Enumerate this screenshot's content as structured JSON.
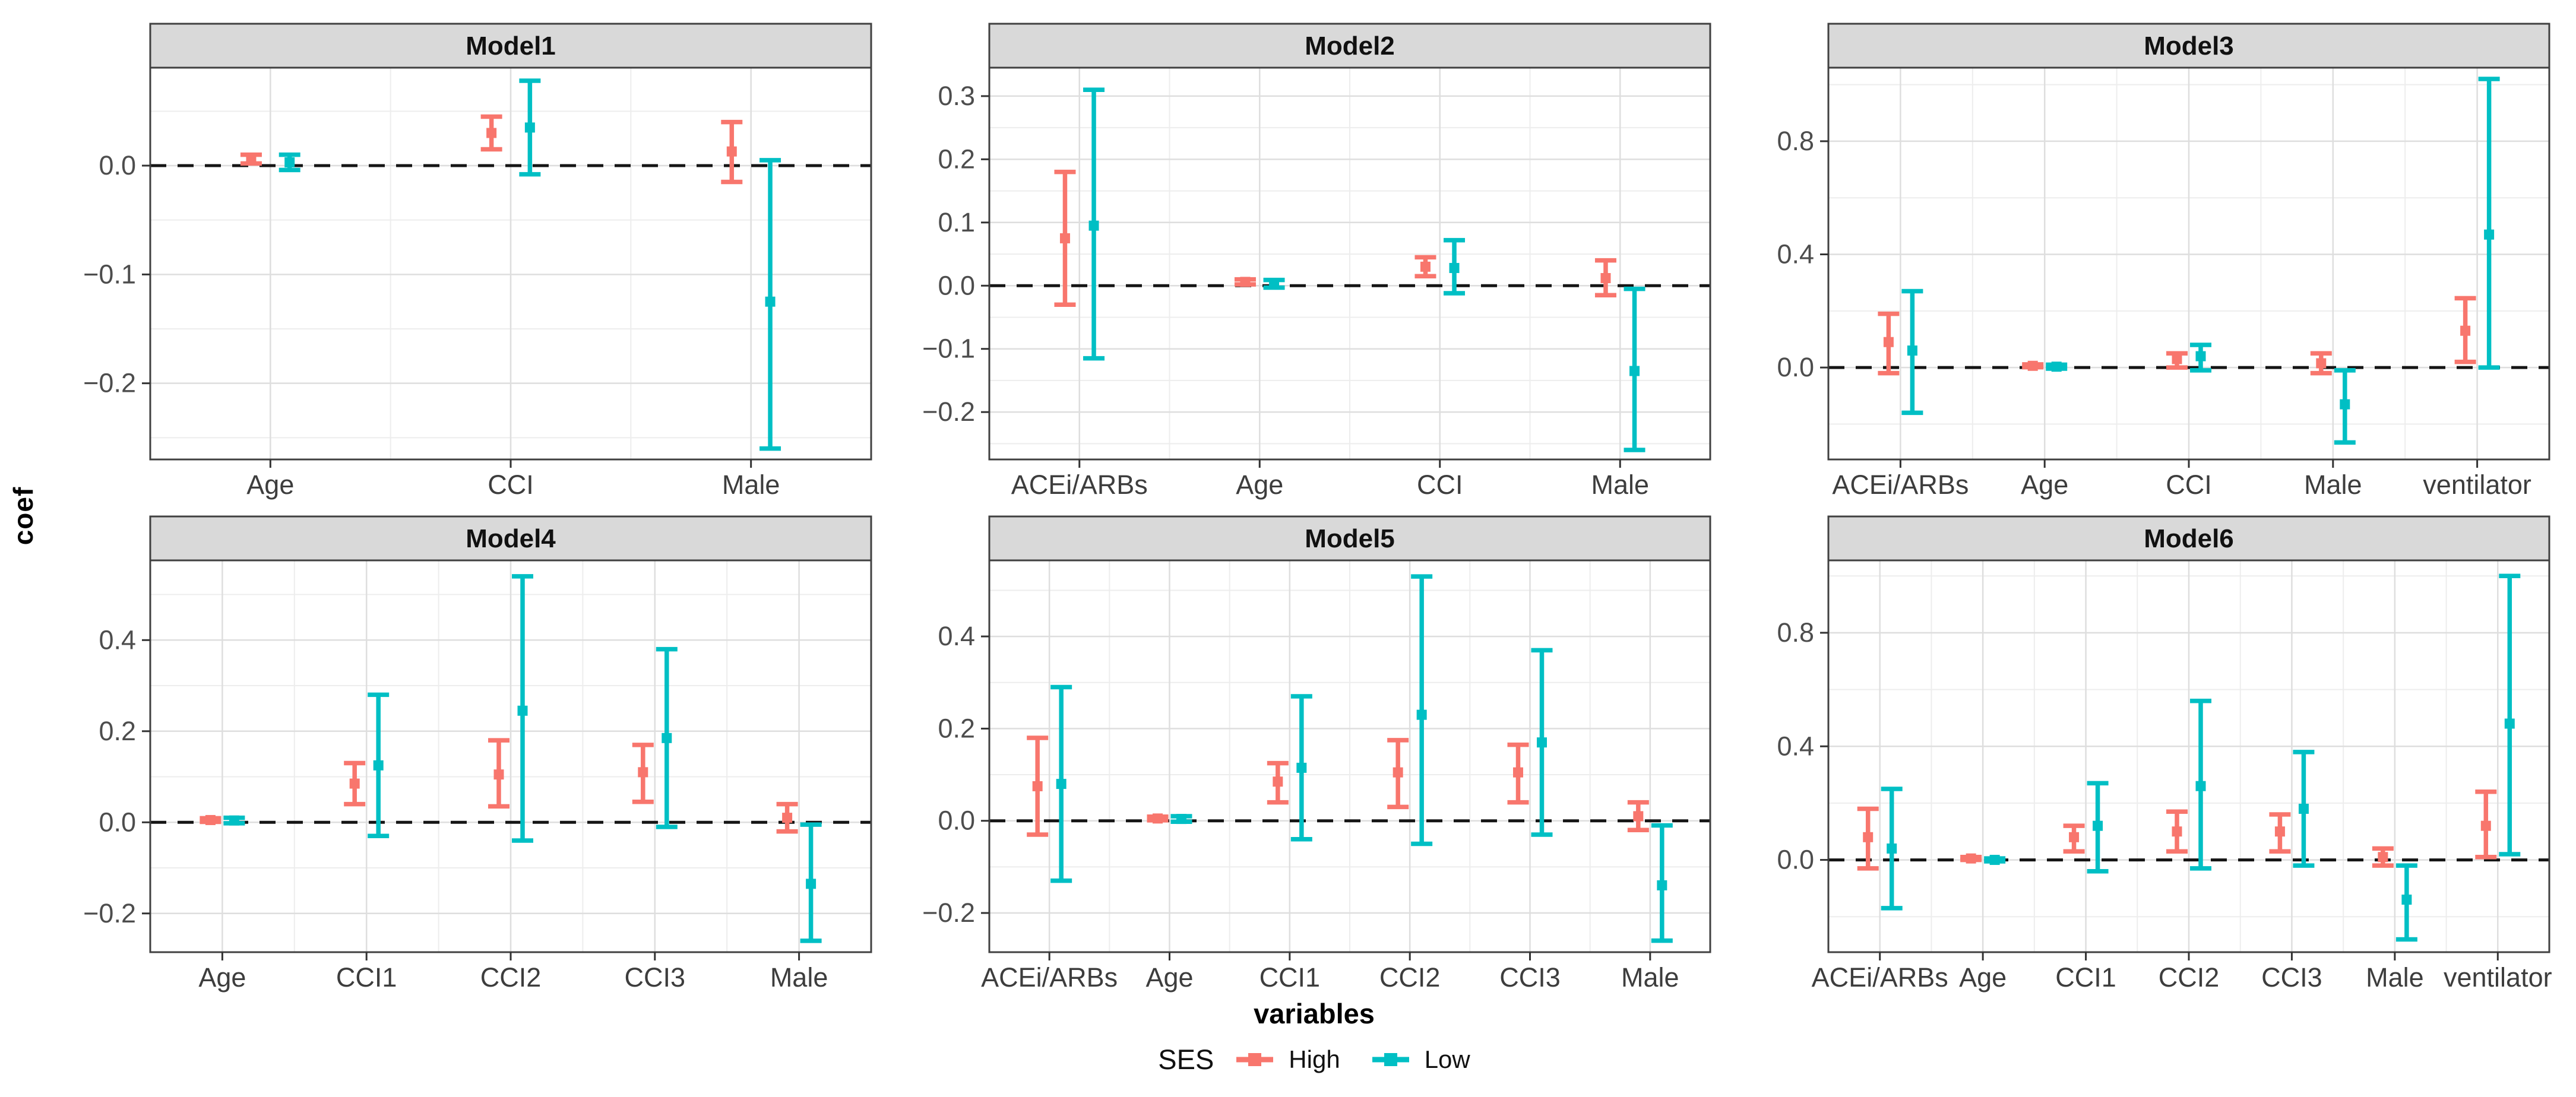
{
  "figure": {
    "y_axis_title": "coef",
    "x_axis_title": "variables",
    "legend": {
      "title": "SES",
      "items": [
        {
          "label": "High",
          "color": "#F8766D"
        },
        {
          "label": "Low",
          "color": "#00BFC4"
        }
      ]
    },
    "colors": {
      "high": "#F8766D",
      "low": "#00BFC4",
      "panel_header_bg": "#D9D9D9",
      "panel_border": "#404040",
      "grid_major": "#DEDEDE",
      "grid_minor": "#EDEDED",
      "tick_text": "#4D4D4D",
      "zero_line": "#151515"
    }
  },
  "chart_data": [
    {
      "type": "errorbar",
      "title": "Model1",
      "categories": [
        "Age",
        "CCI",
        "Male"
      ],
      "ylim": [
        -0.27,
        0.09
      ],
      "yticks": [
        -0.2,
        -0.1,
        0.0
      ],
      "series": [
        {
          "name": "High",
          "color": "#F8766D",
          "points": [
            {
              "coef": 0.006,
              "lo": 0.002,
              "hi": 0.01
            },
            {
              "coef": 0.03,
              "lo": 0.015,
              "hi": 0.045
            },
            {
              "coef": 0.013,
              "lo": -0.015,
              "hi": 0.04
            }
          ]
        },
        {
          "name": "Low",
          "color": "#00BFC4",
          "points": [
            {
              "coef": 0.003,
              "lo": -0.004,
              "hi": 0.01
            },
            {
              "coef": 0.035,
              "lo": -0.008,
              "hi": 0.078
            },
            {
              "coef": -0.125,
              "lo": -0.26,
              "hi": 0.005
            }
          ]
        }
      ]
    },
    {
      "type": "errorbar",
      "title": "Model2",
      "categories": [
        "ACEi/ARBs",
        "Age",
        "CCI",
        "Male"
      ],
      "ylim": [
        -0.275,
        0.345
      ],
      "yticks": [
        -0.2,
        -0.1,
        0.0,
        0.1,
        0.2,
        0.3
      ],
      "series": [
        {
          "name": "High",
          "color": "#F8766D",
          "points": [
            {
              "coef": 0.075,
              "lo": -0.03,
              "hi": 0.18
            },
            {
              "coef": 0.006,
              "lo": 0.002,
              "hi": 0.01
            },
            {
              "coef": 0.03,
              "lo": 0.015,
              "hi": 0.045
            },
            {
              "coef": 0.012,
              "lo": -0.015,
              "hi": 0.04
            }
          ]
        },
        {
          "name": "Low",
          "color": "#00BFC4",
          "points": [
            {
              "coef": 0.095,
              "lo": -0.115,
              "hi": 0.31
            },
            {
              "coef": 0.003,
              "lo": -0.003,
              "hi": 0.009
            },
            {
              "coef": 0.028,
              "lo": -0.012,
              "hi": 0.072
            },
            {
              "coef": -0.135,
              "lo": -0.26,
              "hi": -0.005
            }
          ]
        }
      ]
    },
    {
      "type": "errorbar",
      "title": "Model3",
      "categories": [
        "ACEi/ARBs",
        "Age",
        "CCI",
        "Male",
        "ventilator"
      ],
      "ylim": [
        -0.325,
        1.06
      ],
      "yticks": [
        0.0,
        0.4,
        0.8
      ],
      "series": [
        {
          "name": "High",
          "color": "#F8766D",
          "points": [
            {
              "coef": 0.09,
              "lo": -0.02,
              "hi": 0.19
            },
            {
              "coef": 0.006,
              "lo": 0.001,
              "hi": 0.011
            },
            {
              "coef": 0.03,
              "lo": 0.0,
              "hi": 0.05
            },
            {
              "coef": 0.015,
              "lo": -0.02,
              "hi": 0.05
            },
            {
              "coef": 0.13,
              "lo": 0.02,
              "hi": 0.245
            }
          ]
        },
        {
          "name": "Low",
          "color": "#00BFC4",
          "points": [
            {
              "coef": 0.06,
              "lo": -0.16,
              "hi": 0.27
            },
            {
              "coef": 0.003,
              "lo": -0.004,
              "hi": 0.01
            },
            {
              "coef": 0.04,
              "lo": -0.01,
              "hi": 0.08
            },
            {
              "coef": -0.13,
              "lo": -0.265,
              "hi": -0.01
            },
            {
              "coef": 0.47,
              "lo": 0.0,
              "hi": 1.02
            }
          ]
        }
      ]
    },
    {
      "type": "errorbar",
      "title": "Model4",
      "categories": [
        "Age",
        "CCI1",
        "CCI2",
        "CCI3",
        "Male"
      ],
      "ylim": [
        -0.285,
        0.575
      ],
      "yticks": [
        -0.2,
        0.0,
        0.2,
        0.4
      ],
      "series": [
        {
          "name": "High",
          "color": "#F8766D",
          "points": [
            {
              "coef": 0.005,
              "lo": 0.001,
              "hi": 0.009
            },
            {
              "coef": 0.085,
              "lo": 0.04,
              "hi": 0.13
            },
            {
              "coef": 0.105,
              "lo": 0.035,
              "hi": 0.18
            },
            {
              "coef": 0.11,
              "lo": 0.045,
              "hi": 0.17
            },
            {
              "coef": 0.01,
              "lo": -0.02,
              "hi": 0.04
            }
          ]
        },
        {
          "name": "Low",
          "color": "#00BFC4",
          "points": [
            {
              "coef": 0.004,
              "lo": -0.002,
              "hi": 0.01
            },
            {
              "coef": 0.125,
              "lo": -0.03,
              "hi": 0.28
            },
            {
              "coef": 0.245,
              "lo": -0.04,
              "hi": 0.54
            },
            {
              "coef": 0.185,
              "lo": -0.01,
              "hi": 0.38
            },
            {
              "coef": -0.135,
              "lo": -0.26,
              "hi": -0.005
            }
          ]
        }
      ]
    },
    {
      "type": "errorbar",
      "title": "Model5",
      "categories": [
        "ACEi/ARBs",
        "Age",
        "CCI1",
        "CCI2",
        "CCI3",
        "Male"
      ],
      "ylim": [
        -0.285,
        0.565
      ],
      "yticks": [
        -0.2,
        0.0,
        0.2,
        0.4
      ],
      "series": [
        {
          "name": "High",
          "color": "#F8766D",
          "points": [
            {
              "coef": 0.075,
              "lo": -0.03,
              "hi": 0.18
            },
            {
              "coef": 0.005,
              "lo": 0.001,
              "hi": 0.009
            },
            {
              "coef": 0.085,
              "lo": 0.04,
              "hi": 0.125
            },
            {
              "coef": 0.105,
              "lo": 0.03,
              "hi": 0.175
            },
            {
              "coef": 0.105,
              "lo": 0.04,
              "hi": 0.165
            },
            {
              "coef": 0.01,
              "lo": -0.02,
              "hi": 0.04
            }
          ]
        },
        {
          "name": "Low",
          "color": "#00BFC4",
          "points": [
            {
              "coef": 0.08,
              "lo": -0.13,
              "hi": 0.29
            },
            {
              "coef": 0.004,
              "lo": -0.002,
              "hi": 0.01
            },
            {
              "coef": 0.115,
              "lo": -0.04,
              "hi": 0.27
            },
            {
              "coef": 0.23,
              "lo": -0.05,
              "hi": 0.53
            },
            {
              "coef": 0.17,
              "lo": -0.03,
              "hi": 0.37
            },
            {
              "coef": -0.14,
              "lo": -0.26,
              "hi": -0.01
            }
          ]
        }
      ]
    },
    {
      "type": "errorbar",
      "title": "Model6",
      "categories": [
        "ACEi/ARBs",
        "Age",
        "CCI1",
        "CCI2",
        "CCI3",
        "Male",
        "ventilator"
      ],
      "ylim": [
        -0.325,
        1.055
      ],
      "yticks": [
        0.0,
        0.4,
        0.8
      ],
      "series": [
        {
          "name": "High",
          "color": "#F8766D",
          "points": [
            {
              "coef": 0.08,
              "lo": -0.03,
              "hi": 0.18
            },
            {
              "coef": 0.005,
              "lo": 0.0,
              "hi": 0.01
            },
            {
              "coef": 0.08,
              "lo": 0.03,
              "hi": 0.12
            },
            {
              "coef": 0.1,
              "lo": 0.03,
              "hi": 0.17
            },
            {
              "coef": 0.1,
              "lo": 0.03,
              "hi": 0.16
            },
            {
              "coef": 0.01,
              "lo": -0.02,
              "hi": 0.04
            },
            {
              "coef": 0.12,
              "lo": 0.01,
              "hi": 0.24
            }
          ]
        },
        {
          "name": "Low",
          "color": "#00BFC4",
          "points": [
            {
              "coef": 0.04,
              "lo": -0.17,
              "hi": 0.25
            },
            {
              "coef": 0.0,
              "lo": -0.005,
              "hi": 0.005
            },
            {
              "coef": 0.12,
              "lo": -0.04,
              "hi": 0.27
            },
            {
              "coef": 0.26,
              "lo": -0.03,
              "hi": 0.56
            },
            {
              "coef": 0.18,
              "lo": -0.02,
              "hi": 0.38
            },
            {
              "coef": -0.14,
              "lo": -0.28,
              "hi": -0.02
            },
            {
              "coef": 0.48,
              "lo": 0.02,
              "hi": 1.0
            }
          ]
        }
      ]
    }
  ]
}
